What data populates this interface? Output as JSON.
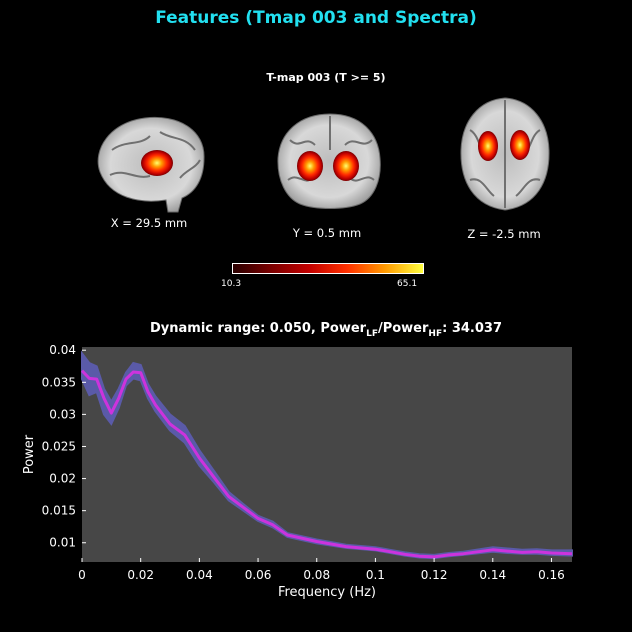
{
  "title": "Features (Tmap 003 and Spectra)",
  "tmap": {
    "title": "T-map 003 (T >= 5)",
    "slices": [
      {
        "label": "X = 29.5 mm",
        "view": "sagittal"
      },
      {
        "label": "Y = 0.5 mm",
        "view": "coronal"
      },
      {
        "label": "Z = -2.5 mm",
        "view": "axial"
      }
    ],
    "colorbar": {
      "min": "10.3",
      "max": "65.1",
      "colormap": "hot"
    }
  },
  "plot": {
    "title_main": "Dynamic range: 0.050, Power",
    "title_sub1": "LF",
    "title_mid": "/Power",
    "title_sub2": "HF",
    "title_end": ": 34.037"
  },
  "chart_data": {
    "type": "line",
    "xlabel": "Frequency (Hz)",
    "ylabel": "Power",
    "xlim": [
      0,
      0.167
    ],
    "ylim": [
      0.007,
      0.0405
    ],
    "xticks": [
      0,
      0.02,
      0.04,
      0.06,
      0.08,
      0.1,
      0.12,
      0.14,
      0.16
    ],
    "xtick_labels": [
      "0",
      "0.02",
      "0.04",
      "0.06",
      "0.08",
      "0.1",
      "0.12",
      "0.14",
      "0.16"
    ],
    "yticks": [
      0.01,
      0.015,
      0.02,
      0.025,
      0.03,
      0.035,
      0.04
    ],
    "ytick_labels": [
      "0.01",
      "0.015",
      "0.02",
      "0.025",
      "0.03",
      "0.035",
      "0.04"
    ],
    "grid": false,
    "colors": {
      "line": "#cc33dd",
      "band": "#5a5aa8",
      "axes_bg": "#474747"
    },
    "series": [
      {
        "x": [
          0,
          0.0025,
          0.005,
          0.0075,
          0.01,
          0.0125,
          0.015,
          0.0175,
          0.02,
          0.0225,
          0.025,
          0.03,
          0.035,
          0.04,
          0.045,
          0.05,
          0.055,
          0.06,
          0.065,
          0.07,
          0.08,
          0.09,
          0.1,
          0.105,
          0.11,
          0.115,
          0.12,
          0.125,
          0.13,
          0.14,
          0.145,
          0.15,
          0.155,
          0.16,
          0.167
        ],
        "y": [
          0.0368,
          0.0356,
          0.0355,
          0.0325,
          0.0302,
          0.0325,
          0.0355,
          0.0366,
          0.0365,
          0.0335,
          0.0315,
          0.0285,
          0.0268,
          0.0232,
          0.0202,
          0.0172,
          0.0155,
          0.0138,
          0.0128,
          0.0112,
          0.0102,
          0.0094,
          0.009,
          0.0086,
          0.0082,
          0.0079,
          0.0078,
          0.0081,
          0.0083,
          0.0089,
          0.0087,
          0.0085,
          0.0086,
          0.0084,
          0.0083
        ],
        "lower": [
          0.0355,
          0.033,
          0.0335,
          0.03,
          0.0285,
          0.031,
          0.0345,
          0.0356,
          0.0353,
          0.0325,
          0.0305,
          0.0275,
          0.0256,
          0.022,
          0.0194,
          0.0166,
          0.015,
          0.0134,
          0.0124,
          0.0109,
          0.0099,
          0.0092,
          0.0088,
          0.0084,
          0.008,
          0.0077,
          0.0076,
          0.0079,
          0.0081,
          0.0086,
          0.0084,
          0.0083,
          0.0083,
          0.0081,
          0.008
        ],
        "upper": [
          0.0395,
          0.038,
          0.0375,
          0.034,
          0.032,
          0.034,
          0.0365,
          0.038,
          0.0377,
          0.0347,
          0.0328,
          0.03,
          0.0282,
          0.0244,
          0.0212,
          0.0179,
          0.016,
          0.0142,
          0.0133,
          0.0115,
          0.0105,
          0.0097,
          0.0093,
          0.0089,
          0.0085,
          0.0082,
          0.0081,
          0.0084,
          0.0086,
          0.0093,
          0.0091,
          0.0089,
          0.009,
          0.0088,
          0.0088
        ]
      }
    ]
  }
}
